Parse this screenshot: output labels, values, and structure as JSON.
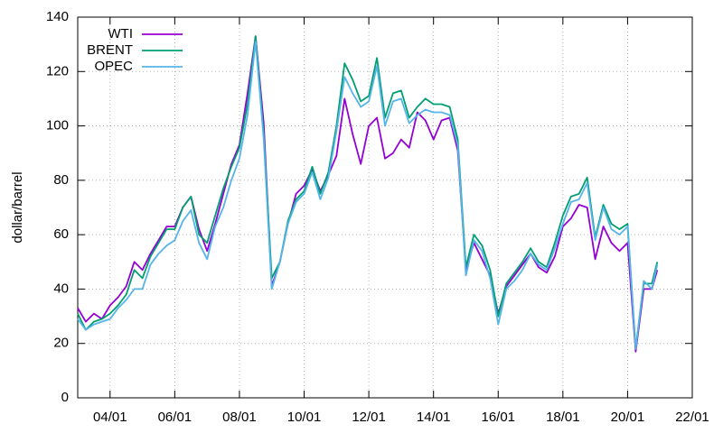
{
  "chart_data": {
    "type": "line",
    "y_label": "dollar/barrel",
    "x": [
      2003,
      2003.25,
      2003.5,
      2003.75,
      2004,
      2004.25,
      2004.5,
      2004.75,
      2005,
      2005.25,
      2005.5,
      2005.75,
      2006,
      2006.25,
      2006.5,
      2006.75,
      2007,
      2007.25,
      2007.5,
      2007.75,
      2008,
      2008.25,
      2008.5,
      2008.75,
      2009,
      2009.25,
      2009.5,
      2009.75,
      2010,
      2010.25,
      2010.5,
      2010.75,
      2011,
      2011.25,
      2011.5,
      2011.75,
      2012,
      2012.25,
      2012.5,
      2012.75,
      2013,
      2013.25,
      2013.5,
      2013.75,
      2014,
      2014.25,
      2014.5,
      2014.75,
      2015,
      2015.25,
      2015.5,
      2015.75,
      2016,
      2016.25,
      2016.5,
      2016.75,
      2017,
      2017.25,
      2017.5,
      2017.75,
      2018,
      2018.25,
      2018.5,
      2018.75,
      2019,
      2019.25,
      2019.5,
      2019.75,
      2020,
      2020.25,
      2020.5,
      2020.75,
      2020.92
    ],
    "series": [
      {
        "name": "WTI",
        "color": "#9400d3",
        "values": [
          33,
          28,
          31,
          29,
          34,
          37,
          41,
          50,
          47,
          53,
          58,
          63,
          63,
          70,
          74,
          62,
          54,
          64,
          75,
          86,
          93,
          112,
          133,
          101,
          41,
          50,
          64,
          75,
          78,
          84,
          76,
          82,
          89,
          110,
          97,
          86,
          100,
          103,
          88,
          90,
          95,
          92,
          105,
          102,
          95,
          102,
          103,
          91,
          47,
          57,
          51,
          45,
          31,
          41,
          45,
          49,
          53,
          48,
          46,
          52,
          63,
          66,
          71,
          70,
          51,
          63,
          57,
          54,
          57,
          17,
          40,
          40,
          47
        ]
      },
      {
        "name": "BRENT",
        "color": "#009e73",
        "values": [
          31,
          25,
          28,
          29,
          31,
          34,
          38,
          47,
          44,
          52,
          57,
          62,
          62,
          70,
          74,
          60,
          57,
          67,
          77,
          85,
          92,
          108,
          133,
          97,
          44,
          50,
          65,
          73,
          76,
          85,
          75,
          83,
          100,
          123,
          117,
          109,
          111,
          125,
          103,
          112,
          113,
          103,
          107,
          110,
          108,
          108,
          107,
          95,
          48,
          60,
          56,
          47,
          30,
          42,
          46,
          50,
          55,
          50,
          48,
          57,
          67,
          74,
          75,
          81,
          59,
          71,
          64,
          62,
          64,
          18,
          42,
          42,
          50
        ]
      },
      {
        "name": "OPEC",
        "color": "#56b4e9",
        "values": [
          29,
          25,
          27,
          28,
          29,
          33,
          36,
          40,
          40,
          49,
          53,
          56,
          58,
          65,
          69,
          57,
          51,
          63,
          70,
          80,
          88,
          104,
          131,
          95,
          40,
          50,
          64,
          72,
          75,
          83,
          73,
          81,
          98,
          118,
          112,
          107,
          109,
          122,
          100,
          109,
          110,
          101,
          104,
          106,
          105,
          105,
          104,
          93,
          45,
          58,
          54,
          44,
          27,
          40,
          43,
          47,
          53,
          49,
          47,
          55,
          64,
          72,
          73,
          79,
          58,
          70,
          62,
          60,
          63,
          18,
          43,
          40,
          49
        ]
      }
    ],
    "xlim": [
      2003,
      2022
    ],
    "xticks": [
      {
        "value": 2004,
        "label": "04/01"
      },
      {
        "value": 2006,
        "label": "06/01"
      },
      {
        "value": 2008,
        "label": "08/01"
      },
      {
        "value": 2010,
        "label": "10/01"
      },
      {
        "value": 2012,
        "label": "12/01"
      },
      {
        "value": 2014,
        "label": "14/01"
      },
      {
        "value": 2016,
        "label": "16/01"
      },
      {
        "value": 2018,
        "label": "18/01"
      },
      {
        "value": 2020,
        "label": "20/01"
      },
      {
        "value": 2022,
        "label": "22/01"
      }
    ],
    "ylim": [
      0,
      140
    ],
    "yticks": [
      0,
      20,
      40,
      60,
      80,
      100,
      120,
      140
    ],
    "grid": true,
    "legend": "top-left"
  }
}
